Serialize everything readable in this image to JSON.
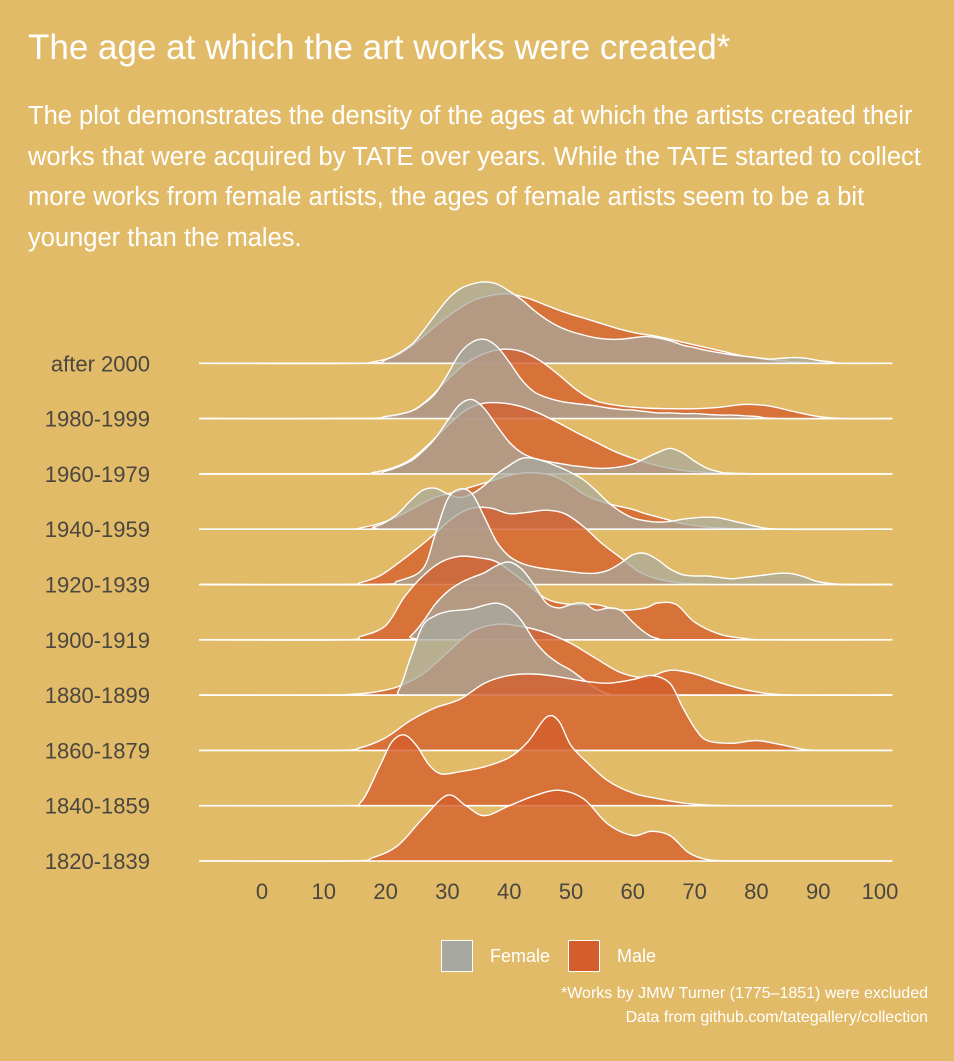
{
  "title": "The age at which the art works were created*",
  "subtitle": "The plot demonstrates the density of the ages at which the artists created their works that were acquired by TATE over years. While the TATE started to collect more works from female artists, the ages of female artists seem to be a bit younger than the males.",
  "caption_lines": [
    "*Works by JMW Turner (1775–1851) were excluded",
    "Data from github.com/tategallery/collection"
  ],
  "colors": {
    "background": "#e2bb68",
    "female": "#a7a9a0",
    "male": "#d35e2c",
    "outline": "#ffffff",
    "text_dark": "#4a4640"
  },
  "chart_data": {
    "type": "ridgeline density",
    "xlim": [
      -10,
      102
    ],
    "x_ticks": [
      0,
      10,
      20,
      30,
      40,
      50,
      60,
      70,
      80,
      90,
      100
    ],
    "x_tick_labels": [
      "0",
      "10",
      "20",
      "30",
      "40",
      "50",
      "60",
      "70",
      "80",
      "90",
      "100"
    ],
    "categories": [
      "1820-1839",
      "1840-1859",
      "1860-1879",
      "1880-1899",
      "1900-1919",
      "1920-1939",
      "1940-1959",
      "1960-1979",
      "1980-1999",
      "after 2000"
    ],
    "category_labels": [
      "1820-1839",
      "1840-1859",
      "1860-1879",
      "1880-1899",
      "1900-1919",
      "1920-1939",
      "1940-1959",
      "1960-1979",
      "1980-1999",
      " after 2000"
    ],
    "legend": [
      {
        "key": "female",
        "label": "Female"
      },
      {
        "key": "male",
        "label": "Male"
      }
    ],
    "series": [
      {
        "name": "Male",
        "key": "male",
        "category": "1820-1839",
        "max_height": 1.3,
        "x": [
          -10,
          14,
          18,
          22,
          26,
          30,
          33,
          36,
          40,
          44,
          48,
          52,
          56,
          60,
          63,
          66,
          69,
          72,
          76,
          80,
          90,
          102
        ],
        "y": [
          0,
          0,
          0.05,
          0.22,
          0.6,
          0.93,
          0.78,
          0.64,
          0.78,
          0.92,
          1.0,
          0.88,
          0.52,
          0.36,
          0.42,
          0.36,
          0.12,
          0.02,
          0,
          0,
          0,
          0
        ]
      },
      {
        "name": "Male",
        "key": "male",
        "category": "1840-1859",
        "max_height": 1.3,
        "x": [
          -10,
          13,
          16,
          19,
          21,
          23,
          25,
          27,
          29,
          32,
          36,
          40,
          43,
          46,
          48,
          50,
          53,
          56,
          60,
          64,
          68,
          72,
          76,
          80,
          90,
          102
        ],
        "y": [
          0,
          0,
          0.05,
          0.55,
          0.9,
          1.0,
          0.85,
          0.58,
          0.45,
          0.48,
          0.55,
          0.68,
          0.9,
          1.25,
          1.2,
          0.85,
          0.58,
          0.35,
          0.18,
          0.1,
          0.04,
          0.01,
          0,
          0,
          0,
          0
        ]
      },
      {
        "name": "Male",
        "key": "male",
        "category": "1860-1879",
        "max_height": 1.3,
        "x": [
          -10,
          12,
          16,
          20,
          24,
          28,
          32,
          36,
          40,
          44,
          48,
          52,
          56,
          60,
          63,
          66,
          68,
          70,
          72,
          76,
          80,
          84,
          88,
          92,
          102
        ],
        "y": [
          0,
          0,
          0.04,
          0.18,
          0.42,
          0.6,
          0.72,
          0.95,
          1.06,
          1.08,
          1.04,
          0.98,
          0.95,
          1.0,
          1.06,
          0.95,
          0.62,
          0.32,
          0.14,
          0.1,
          0.14,
          0.08,
          0.01,
          0,
          0
        ]
      },
      {
        "name": "Male",
        "key": "male",
        "category": "1880-1899",
        "max_height": 1.3,
        "x": [
          -10,
          10,
          14,
          18,
          22,
          26,
          30,
          34,
          38,
          42,
          46,
          50,
          54,
          58,
          62,
          66,
          70,
          74,
          78,
          82,
          86,
          90,
          102
        ],
        "y": [
          0,
          0,
          0.01,
          0.04,
          0.12,
          0.3,
          0.6,
          0.9,
          1.0,
          0.97,
          0.88,
          0.73,
          0.52,
          0.32,
          0.25,
          0.35,
          0.3,
          0.18,
          0.08,
          0.02,
          0,
          0,
          0
        ]
      },
      {
        "name": "Female",
        "key": "female",
        "category": "1880-1899",
        "max_height": 1.3,
        "x": [
          -10,
          20,
          22,
          24,
          26,
          28,
          30,
          32,
          34,
          36,
          38,
          40,
          42,
          44,
          46,
          48,
          50,
          52,
          54,
          56,
          60,
          102
        ],
        "y": [
          0,
          0,
          0.05,
          0.52,
          0.98,
          1.12,
          1.18,
          1.2,
          1.22,
          1.27,
          1.3,
          1.23,
          1.05,
          0.78,
          0.58,
          0.45,
          0.35,
          0.22,
          0.1,
          0.02,
          0,
          0
        ]
      },
      {
        "name": "Male",
        "key": "male",
        "category": "1900-1919",
        "max_height": 1.3,
        "x": [
          -10,
          13,
          16,
          20,
          23,
          26,
          29,
          32,
          35,
          38,
          42,
          46,
          50,
          54,
          58,
          62,
          64,
          67,
          70,
          74,
          78,
          82,
          102
        ],
        "y": [
          0,
          0,
          0.05,
          0.2,
          0.6,
          0.9,
          1.1,
          1.18,
          1.16,
          1.1,
          0.85,
          0.58,
          0.5,
          0.5,
          0.42,
          0.45,
          0.52,
          0.5,
          0.25,
          0.08,
          0.02,
          0,
          0
        ]
      },
      {
        "name": "Female",
        "key": "female",
        "category": "1900-1919",
        "max_height": 1.3,
        "x": [
          -10,
          22,
          24,
          26,
          28,
          30,
          32,
          34,
          36,
          38,
          40,
          42,
          44,
          46,
          48,
          50,
          52,
          54,
          56,
          58,
          60,
          62,
          64,
          68,
          102
        ],
        "y": [
          0,
          0,
          0.05,
          0.25,
          0.5,
          0.68,
          0.8,
          0.88,
          0.95,
          1.05,
          1.1,
          1.0,
          0.78,
          0.52,
          0.45,
          0.5,
          0.52,
          0.42,
          0.45,
          0.42,
          0.25,
          0.1,
          0.02,
          0,
          0
        ]
      },
      {
        "name": "Male",
        "key": "male",
        "category": "1920-1939",
        "max_height": 1.3,
        "x": [
          -10,
          13,
          16,
          19,
          22,
          25,
          28,
          31,
          34,
          37,
          40,
          43,
          46,
          49,
          52,
          55,
          58,
          61,
          64,
          67,
          70,
          73,
          76,
          80,
          90,
          102
        ],
        "y": [
          0,
          0,
          0.03,
          0.12,
          0.3,
          0.5,
          0.72,
          0.95,
          1.08,
          1.08,
          1.0,
          1.02,
          1.05,
          1.0,
          0.82,
          0.58,
          0.38,
          0.18,
          0.08,
          0.03,
          0.01,
          0,
          0,
          0,
          0,
          0
        ]
      },
      {
        "name": "Female",
        "key": "female",
        "category": "1920-1939",
        "max_height": 1.3,
        "x": [
          -10,
          18,
          22,
          26,
          28,
          30,
          32,
          34,
          36,
          38,
          40,
          42,
          44,
          46,
          48,
          50,
          52,
          54,
          56,
          58,
          60,
          62,
          64,
          66,
          68,
          70,
          72,
          74,
          76,
          78,
          80,
          82,
          84,
          86,
          88,
          90,
          94,
          102
        ],
        "y": [
          0,
          0,
          0.05,
          0.22,
          0.7,
          1.2,
          1.35,
          1.28,
          0.95,
          0.6,
          0.4,
          0.3,
          0.25,
          0.22,
          0.2,
          0.18,
          0.16,
          0.16,
          0.2,
          0.3,
          0.42,
          0.44,
          0.35,
          0.22,
          0.14,
          0.12,
          0.12,
          0.1,
          0.08,
          0.1,
          0.12,
          0.14,
          0.16,
          0.15,
          0.1,
          0.04,
          0,
          0
        ]
      },
      {
        "name": "Male",
        "key": "male",
        "category": "1940-1959",
        "max_height": 1.3,
        "x": [
          -10,
          13,
          16,
          19,
          22,
          25,
          28,
          31,
          34,
          37,
          40,
          43,
          46,
          48,
          50,
          52,
          54,
          56,
          58,
          60,
          62,
          65,
          68,
          72,
          76,
          80,
          90,
          102
        ],
        "y": [
          0,
          0,
          0.02,
          0.08,
          0.18,
          0.32,
          0.45,
          0.52,
          0.6,
          0.68,
          0.76,
          0.8,
          0.78,
          0.72,
          0.62,
          0.5,
          0.42,
          0.36,
          0.32,
          0.28,
          0.22,
          0.15,
          0.08,
          0.03,
          0.01,
          0,
          0,
          0
        ]
      },
      {
        "name": "Female",
        "key": "female",
        "category": "1940-1959",
        "max_height": 1.3,
        "x": [
          -10,
          16,
          18,
          20,
          22,
          24,
          26,
          28,
          30,
          32,
          34,
          36,
          38,
          40,
          42,
          44,
          46,
          48,
          50,
          52,
          54,
          56,
          58,
          60,
          62,
          64,
          66,
          68,
          70,
          72,
          74,
          76,
          78,
          80,
          84,
          102
        ],
        "y": [
          0,
          0,
          0.03,
          0.1,
          0.22,
          0.4,
          0.55,
          0.58,
          0.5,
          0.45,
          0.5,
          0.62,
          0.78,
          0.9,
          1.0,
          1.0,
          0.95,
          0.88,
          0.8,
          0.7,
          0.55,
          0.38,
          0.25,
          0.16,
          0.12,
          0.1,
          0.11,
          0.14,
          0.16,
          0.17,
          0.16,
          0.12,
          0.08,
          0.04,
          0,
          0
        ]
      },
      {
        "name": "Male",
        "key": "male",
        "category": "1960-1979",
        "max_height": 1.3,
        "x": [
          -10,
          15,
          18,
          21,
          24,
          27,
          30,
          33,
          36,
          39,
          42,
          45,
          48,
          51,
          54,
          57,
          60,
          63,
          66,
          69,
          72,
          76,
          80,
          84,
          90,
          102
        ],
        "y": [
          0,
          0,
          0.02,
          0.08,
          0.2,
          0.42,
          0.68,
          0.9,
          1.0,
          1.0,
          0.95,
          0.85,
          0.72,
          0.58,
          0.45,
          0.32,
          0.22,
          0.14,
          0.08,
          0.04,
          0.02,
          0.01,
          0,
          0,
          0,
          0
        ]
      },
      {
        "name": "Female",
        "key": "female",
        "category": "1960-1979",
        "max_height": 1.3,
        "x": [
          -10,
          16,
          20,
          24,
          26,
          28,
          30,
          32,
          34,
          36,
          38,
          40,
          42,
          44,
          46,
          48,
          50,
          52,
          54,
          56,
          58,
          60,
          62,
          64,
          66,
          68,
          70,
          72,
          74,
          78,
          102
        ],
        "y": [
          0,
          0,
          0.04,
          0.18,
          0.32,
          0.5,
          0.75,
          0.98,
          1.05,
          0.92,
          0.68,
          0.45,
          0.3,
          0.22,
          0.18,
          0.15,
          0.12,
          0.1,
          0.08,
          0.08,
          0.1,
          0.14,
          0.22,
          0.3,
          0.36,
          0.3,
          0.18,
          0.08,
          0.03,
          0,
          0
        ]
      },
      {
        "name": "Male",
        "key": "male",
        "category": "1980-1999",
        "max_height": 1.3,
        "x": [
          -10,
          16,
          20,
          24,
          27,
          30,
          33,
          36,
          39,
          42,
          45,
          48,
          51,
          54,
          58,
          62,
          66,
          70,
          74,
          78,
          82,
          86,
          90,
          94,
          102
        ],
        "y": [
          0,
          0,
          0.02,
          0.1,
          0.28,
          0.55,
          0.78,
          0.92,
          0.98,
          0.95,
          0.82,
          0.62,
          0.4,
          0.25,
          0.18,
          0.15,
          0.14,
          0.14,
          0.16,
          0.2,
          0.18,
          0.1,
          0.03,
          0,
          0
        ]
      },
      {
        "name": "Female",
        "key": "female",
        "category": "1980-1999",
        "max_height": 1.3,
        "x": [
          -10,
          16,
          20,
          24,
          26,
          28,
          30,
          32,
          34,
          36,
          38,
          40,
          42,
          44,
          46,
          48,
          50,
          52,
          54,
          56,
          58,
          60,
          62,
          64,
          66,
          68,
          70,
          72,
          74,
          76,
          78,
          80,
          84,
          102
        ],
        "y": [
          0,
          0,
          0.03,
          0.1,
          0.2,
          0.35,
          0.62,
          0.92,
          1.08,
          1.12,
          1.02,
          0.8,
          0.55,
          0.38,
          0.3,
          0.25,
          0.22,
          0.2,
          0.18,
          0.15,
          0.13,
          0.12,
          0.1,
          0.08,
          0.08,
          0.07,
          0.07,
          0.06,
          0.05,
          0.05,
          0.04,
          0.03,
          0,
          0
        ]
      },
      {
        "name": "Male",
        "key": "male",
        "category": "after 2000",
        "max_height": 1.3,
        "x": [
          -10,
          14,
          18,
          22,
          25,
          28,
          31,
          34,
          37,
          40,
          43,
          46,
          49,
          52,
          55,
          58,
          61,
          64,
          67,
          70,
          74,
          78,
          82,
          86,
          90,
          94,
          102
        ],
        "y": [
          0,
          0,
          0.02,
          0.12,
          0.3,
          0.52,
          0.72,
          0.88,
          0.96,
          0.98,
          0.92,
          0.82,
          0.72,
          0.64,
          0.56,
          0.48,
          0.42,
          0.38,
          0.32,
          0.26,
          0.18,
          0.1,
          0.05,
          0.02,
          0,
          0,
          0
        ]
      },
      {
        "name": "Female",
        "key": "female",
        "category": "after 2000",
        "max_height": 1.3,
        "x": [
          -10,
          16,
          20,
          24,
          26,
          28,
          30,
          32,
          34,
          36,
          38,
          40,
          42,
          44,
          46,
          48,
          50,
          52,
          54,
          56,
          58,
          60,
          62,
          64,
          66,
          68,
          70,
          72,
          74,
          76,
          78,
          80,
          82,
          84,
          86,
          88,
          90,
          92,
          94,
          102
        ],
        "y": [
          0,
          0,
          0.05,
          0.25,
          0.45,
          0.68,
          0.9,
          1.05,
          1.12,
          1.15,
          1.12,
          1.02,
          0.9,
          0.75,
          0.62,
          0.52,
          0.45,
          0.4,
          0.36,
          0.34,
          0.34,
          0.36,
          0.38,
          0.36,
          0.32,
          0.26,
          0.22,
          0.18,
          0.15,
          0.12,
          0.1,
          0.08,
          0.06,
          0.07,
          0.08,
          0.07,
          0.04,
          0.02,
          0,
          0
        ]
      }
    ]
  }
}
